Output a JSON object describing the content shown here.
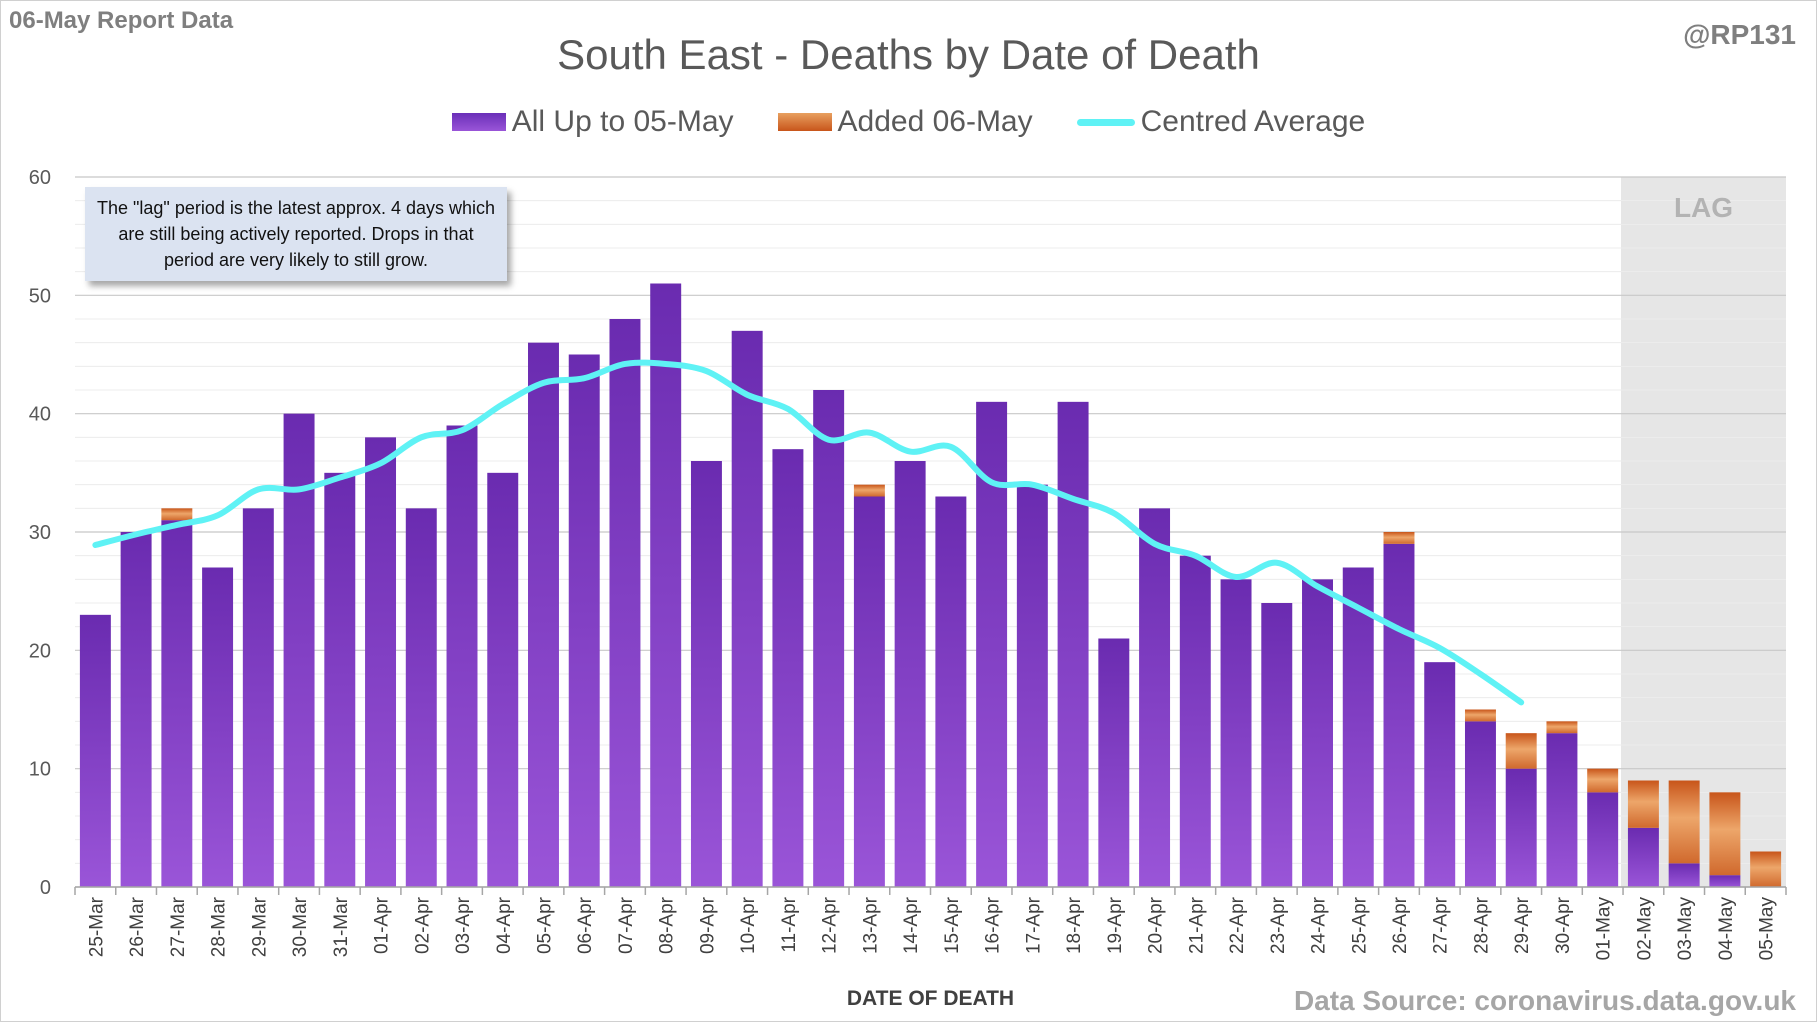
{
  "header": {
    "report_label": "06-May Report Data",
    "handle": "@RP131",
    "title": "South East - Deaths by Date of Death"
  },
  "legend": {
    "all_label": "All Up to 05-May",
    "added_label": "Added 06-May",
    "avg_label": "Centred Average"
  },
  "note": "The \"lag\" period is the latest approx. 4 days which are still being actively reported.  Drops in that period are very likely to still grow.",
  "lag_label": "LAG",
  "source": "Data Source: coronavirus.data.gov.uk",
  "colors": {
    "purple": "#7030a0",
    "orange": "#e07b39",
    "average": "#5ff2f5",
    "lag_shade": "#e6e6e6"
  },
  "chart_data": {
    "type": "bar",
    "xlabel": "DATE OF DEATH",
    "ylabel": "",
    "ylim": [
      0,
      60
    ],
    "yticks": [
      0,
      10,
      20,
      30,
      40,
      50,
      60
    ],
    "grid": true,
    "legend_position": "top",
    "categories": [
      "25-Mar",
      "26-Mar",
      "27-Mar",
      "28-Mar",
      "29-Mar",
      "30-Mar",
      "31-Mar",
      "01-Apr",
      "02-Apr",
      "03-Apr",
      "04-Apr",
      "05-Apr",
      "06-Apr",
      "07-Apr",
      "08-Apr",
      "09-Apr",
      "10-Apr",
      "11-Apr",
      "12-Apr",
      "13-Apr",
      "14-Apr",
      "15-Apr",
      "16-Apr",
      "17-Apr",
      "18-Apr",
      "19-Apr",
      "20-Apr",
      "21-Apr",
      "22-Apr",
      "23-Apr",
      "24-Apr",
      "25-Apr",
      "26-Apr",
      "27-Apr",
      "28-Apr",
      "29-Apr",
      "30-Apr",
      "01-May",
      "02-May",
      "03-May",
      "04-May",
      "05-May"
    ],
    "lag_region": [
      "02-May",
      "05-May"
    ],
    "series": [
      {
        "name": "All Up to 05-May",
        "kind": "bar",
        "values": [
          23,
          30,
          31,
          27,
          32,
          40,
          35,
          38,
          32,
          39,
          35,
          46,
          45,
          48,
          51,
          36,
          47,
          37,
          42,
          33,
          36,
          33,
          41,
          34,
          41,
          21,
          32,
          28,
          26,
          24,
          26,
          27,
          29,
          19,
          14,
          10,
          13,
          8,
          5,
          2,
          1,
          0
        ]
      },
      {
        "name": "Added 06-May",
        "kind": "bar-stacked",
        "values": [
          0,
          0,
          1,
          0,
          0,
          0,
          0,
          0,
          0,
          0,
          0,
          0,
          0,
          0,
          0,
          0,
          0,
          0,
          0,
          1,
          0,
          0,
          0,
          0,
          0,
          0,
          0,
          0,
          0,
          0,
          0,
          0,
          1,
          0,
          1,
          3,
          1,
          2,
          4,
          7,
          7,
          3
        ]
      },
      {
        "name": "Centred Average",
        "kind": "line",
        "values": [
          28.9,
          29.8,
          30.6,
          31.4,
          33.6,
          33.6,
          34.6,
          35.8,
          38.0,
          38.6,
          40.8,
          42.6,
          43.0,
          44.2,
          44.2,
          43.6,
          41.6,
          40.4,
          37.8,
          38.4,
          36.8,
          37.2,
          34.2,
          34.0,
          32.8,
          31.6,
          29.0,
          28.0,
          26.2,
          27.4,
          25.4,
          23.6,
          21.8,
          20.2,
          18.0,
          15.6,
          null,
          null,
          null,
          null,
          null,
          null
        ]
      }
    ]
  }
}
